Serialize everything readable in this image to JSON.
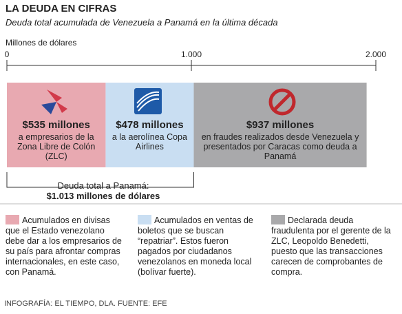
{
  "chart_data": {
    "type": "stacked-bar",
    "title": "LA DEUDA EN CIFRAS",
    "subtitle": "Deuda total acumulada de Venezuela a Panamá en la última década",
    "x_label": "Millones de dólares",
    "xlim": [
      0,
      2000
    ],
    "xticks": [
      0,
      {
        "value": 1000,
        "label": "1.000"
      },
      {
        "value": 2000,
        "label": "2.000"
      }
    ],
    "series": [
      {
        "name": "Acumulados en divisas que el Estado venezolano debe dar a los empresarios de su país para afrontar compras internacionales, en este caso, con Panamá.",
        "color": "#e8a9b1",
        "values": [
          535
        ],
        "value_labels": [
          "$535 millones"
        ],
        "description": "a empresarios de la Zona Libre de Colón (ZLC)"
      },
      {
        "name": "Acumulados en ventas de boletos que se buscan “repatriar”. Estos fueron pagados por ciudadanos venezolanos en moneda local (bolívar fuerte).",
        "color": "#c9def2",
        "values": [
          478
        ],
        "value_labels": [
          "$478 millones"
        ],
        "description": "a la aerolínea Copa Airlines"
      },
      {
        "name": "Declarada deuda fraudulenta por el gerente de la ZLC, Leopoldo Benedetti, puesto que las transacciones carecen de comprobantes de compra.",
        "color": "#a9a9ab",
        "values": [
          937
        ],
        "value_labels": [
          "$937 millones"
        ],
        "description": "en fraudes realizados desde Venezuela y presentados por Caracas como deuda a Panamá"
      }
    ],
    "total_label": "Deuda total a Panamá:",
    "total_value_label": "$1.013 millones de dólares",
    "source": "INFOGRAFÍA: EL TIEMPO, DLA. FUENTE: EFE"
  }
}
